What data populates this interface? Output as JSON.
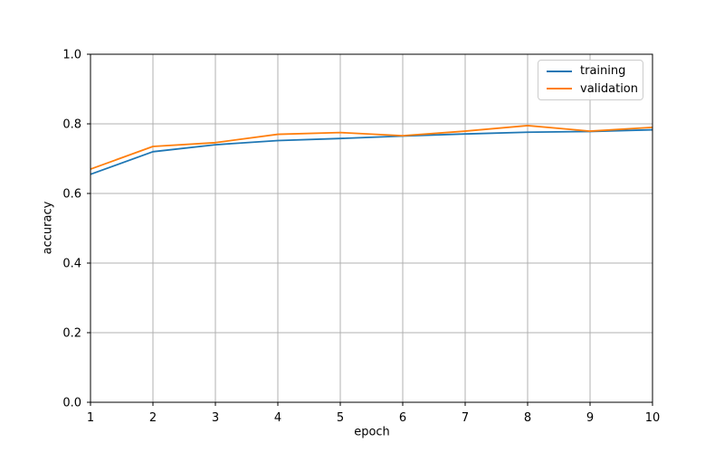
{
  "chart_data": {
    "type": "line",
    "title": "",
    "xlabel": "epoch",
    "ylabel": "accuracy",
    "x": [
      1,
      2,
      3,
      4,
      5,
      6,
      7,
      8,
      9,
      10
    ],
    "series": [
      {
        "name": "training",
        "color": "#1f77b4",
        "values": [
          0.655,
          0.72,
          0.74,
          0.752,
          0.758,
          0.765,
          0.771,
          0.776,
          0.778,
          0.783
        ]
      },
      {
        "name": "validation",
        "color": "#ff7f0e",
        "values": [
          0.67,
          0.735,
          0.746,
          0.77,
          0.775,
          0.766,
          0.779,
          0.795,
          0.779,
          0.79
        ]
      }
    ],
    "xlim": [
      1,
      10
    ],
    "ylim": [
      0.0,
      1.0
    ],
    "xticks": [
      "1",
      "2",
      "3",
      "4",
      "5",
      "6",
      "7",
      "8",
      "9",
      "10"
    ],
    "yticks": [
      "0.0",
      "0.2",
      "0.4",
      "0.6",
      "0.8",
      "1.0"
    ],
    "grid": true,
    "legend_position": "upper right",
    "colors": {
      "grid": "#b0b0b0",
      "spine": "#000000",
      "text": "#000000",
      "background": "#ffffff"
    }
  }
}
